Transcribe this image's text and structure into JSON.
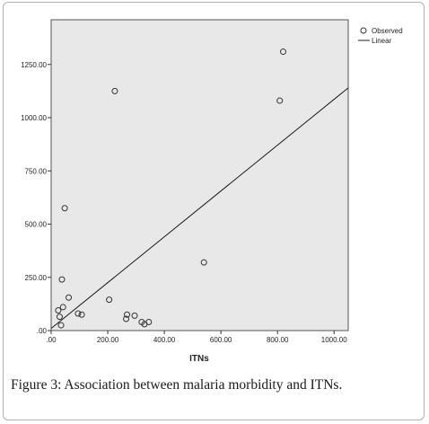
{
  "chart_data": {
    "type": "scatter",
    "xlabel": "ITNs",
    "ylabel": "",
    "xlim": [
      0,
      1050
    ],
    "ylim": [
      0,
      1460
    ],
    "x_ticks": [
      {
        "value": 0,
        "label": ".00"
      },
      {
        "value": 200,
        "label": "200.00"
      },
      {
        "value": 400,
        "label": "400.00"
      },
      {
        "value": 600,
        "label": "600.00"
      },
      {
        "value": 800,
        "label": "800.00"
      },
      {
        "value": 1000,
        "label": "1000.00"
      }
    ],
    "y_ticks": [
      {
        "value": 0,
        "label": ".00"
      },
      {
        "value": 250,
        "label": "250.00"
      },
      {
        "value": 500,
        "label": "500.00"
      },
      {
        "value": 750,
        "label": "750.00"
      },
      {
        "value": 1000,
        "label": "1000.00"
      },
      {
        "value": 1250,
        "label": "1250.00"
      }
    ],
    "series": [
      {
        "name": "Observed",
        "type": "scatter",
        "points": [
          [
            25,
            95
          ],
          [
            30,
            65
          ],
          [
            35,
            25
          ],
          [
            38,
            240
          ],
          [
            42,
            110
          ],
          [
            48,
            575
          ],
          [
            62,
            155
          ],
          [
            95,
            80
          ],
          [
            108,
            75
          ],
          [
            205,
            145
          ],
          [
            225,
            1125
          ],
          [
            265,
            55
          ],
          [
            268,
            75
          ],
          [
            295,
            70
          ],
          [
            320,
            40
          ],
          [
            330,
            30
          ],
          [
            345,
            40
          ],
          [
            540,
            320
          ],
          [
            808,
            1080
          ],
          [
            820,
            1310
          ]
        ]
      },
      {
        "name": "Linear",
        "type": "line",
        "points": [
          [
            0,
            10
          ],
          [
            1050,
            1140
          ]
        ]
      }
    ],
    "legend": {
      "position": "top-right"
    },
    "grid": false,
    "background": "#e8e8e8"
  },
  "caption": {
    "label": "Figure 3:",
    "text": " Association between malaria morbidity and ITNs."
  }
}
